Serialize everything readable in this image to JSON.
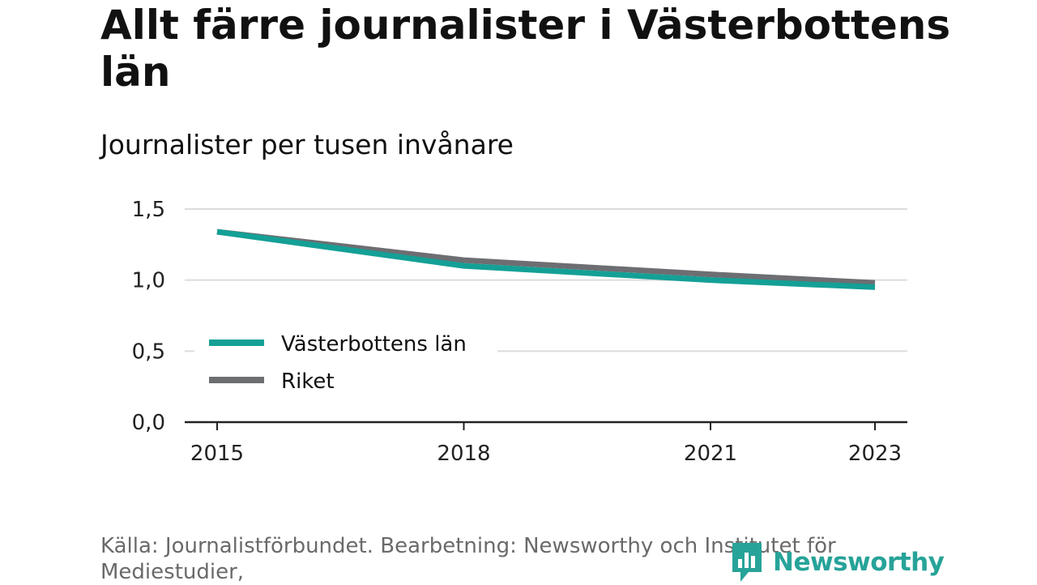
{
  "title": "Allt färre journalister i Västerbottens län",
  "subtitle": "Journalister per tusen invånare",
  "source": "Källa: Journalistförbundet. Bearbetning: Newsworthy och Institutet för Mediestudier,",
  "brand": {
    "name": "Newsworthy",
    "color": "#27a399",
    "icon": "newsworthy-logo-icon"
  },
  "colors": {
    "vasterbotten": "#14a096",
    "riket": "#6d6e72",
    "grid": "#dcdcdc",
    "axis": "#222222"
  },
  "chart_data": {
    "type": "line",
    "title": "Allt färre journalister i Västerbottens län",
    "ylabel": "Journalister per tusen invånare",
    "xlabel": "",
    "x": [
      2015,
      2018,
      2021,
      2023
    ],
    "xticks": [
      "2015",
      "2018",
      "2021",
      "2023"
    ],
    "yticks": [
      "0,0",
      "0,5",
      "1,0",
      "1,5"
    ],
    "ylim": [
      0,
      1.5
    ],
    "grid": "horizontal",
    "legend_position": "lower-left",
    "series": [
      {
        "name": "Västerbottens län",
        "color": "#14a096",
        "values": [
          1.34,
          1.1,
          1.0,
          0.95
        ]
      },
      {
        "name": "Riket",
        "color": "#6d6e72",
        "values": [
          1.34,
          1.14,
          1.04,
          0.98
        ]
      }
    ]
  }
}
